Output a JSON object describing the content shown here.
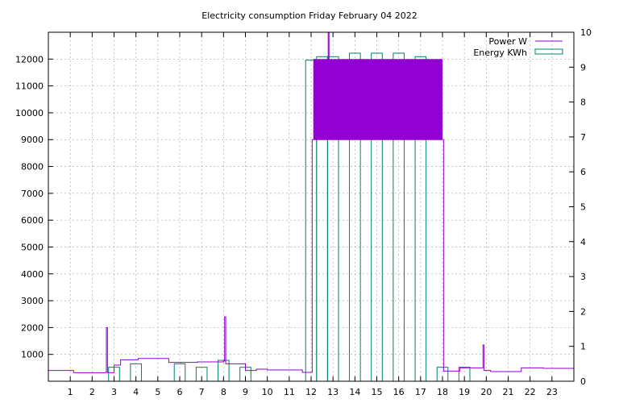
{
  "chart_data": {
    "type": "line",
    "title": "Electricity consumption Friday February 04 2022",
    "xlabel": "",
    "ylabel": "",
    "y2label": "",
    "xlim": [
      0,
      24
    ],
    "ylim": [
      0,
      13000
    ],
    "y2lim": [
      0,
      10
    ],
    "grid": true,
    "legend_position": "top-right",
    "x_ticks": [
      1,
      2,
      3,
      4,
      5,
      6,
      7,
      8,
      9,
      10,
      11,
      12,
      13,
      14,
      15,
      16,
      17,
      18,
      19,
      20,
      21,
      22,
      23
    ],
    "y_ticks": [
      1000,
      2000,
      3000,
      4000,
      5000,
      6000,
      7000,
      8000,
      9000,
      10000,
      11000,
      12000
    ],
    "y2_ticks": [
      0,
      1,
      2,
      3,
      4,
      5,
      6,
      7,
      8,
      9,
      10
    ],
    "series": [
      {
        "name": "Power W",
        "axis": "y",
        "color": "#9400d3",
        "style": "step",
        "points": [
          [
            0.0,
            400
          ],
          [
            1.0,
            400
          ],
          [
            1.15,
            320
          ],
          [
            2.0,
            320
          ],
          [
            2.6,
            330
          ],
          [
            2.65,
            2000
          ],
          [
            2.7,
            320
          ],
          [
            2.9,
            320
          ],
          [
            3.0,
            600
          ],
          [
            3.3,
            800
          ],
          [
            4.0,
            800
          ],
          [
            4.1,
            850
          ],
          [
            5.4,
            850
          ],
          [
            5.5,
            700
          ],
          [
            6.5,
            700
          ],
          [
            6.8,
            720
          ],
          [
            7.8,
            720
          ],
          [
            8.0,
            750
          ],
          [
            8.05,
            2400
          ],
          [
            8.1,
            650
          ],
          [
            8.7,
            650
          ],
          [
            9.0,
            400
          ],
          [
            9.5,
            450
          ],
          [
            10.0,
            420
          ],
          [
            11.5,
            420
          ],
          [
            11.6,
            330
          ],
          [
            12.0,
            330
          ],
          [
            12.05,
            9000
          ],
          [
            12.75,
            9000
          ],
          [
            12.78,
            13000
          ],
          [
            12.82,
            9000
          ],
          [
            18.0,
            9000
          ],
          [
            18.05,
            380
          ],
          [
            18.5,
            380
          ],
          [
            18.8,
            500
          ],
          [
            19.8,
            500
          ],
          [
            19.85,
            1350
          ],
          [
            19.9,
            400
          ],
          [
            20.2,
            360
          ],
          [
            21.5,
            360
          ],
          [
            21.6,
            500
          ],
          [
            22.6,
            480
          ],
          [
            23.9,
            480
          ],
          [
            24.0,
            500
          ]
        ],
        "band": {
          "x_from": 12.1,
          "x_to": 18.0,
          "low": 9000,
          "high": 12000
        }
      },
      {
        "name": "Energy KWh",
        "axis": "y2",
        "color": "#00806b",
        "style": "boxes",
        "box_width": 0.5,
        "bars": [
          [
            3,
            0.4
          ],
          [
            4,
            0.5
          ],
          [
            6,
            0.5
          ],
          [
            7,
            0.4
          ],
          [
            8,
            0.6
          ],
          [
            9,
            0.4
          ],
          [
            12,
            9.2
          ],
          [
            12.5,
            9.3
          ],
          [
            13,
            9.3
          ],
          [
            14,
            9.4
          ],
          [
            15,
            9.4
          ],
          [
            16,
            9.4
          ],
          [
            17,
            9.3
          ],
          [
            18,
            0.4
          ],
          [
            19,
            0.4
          ]
        ]
      }
    ]
  }
}
